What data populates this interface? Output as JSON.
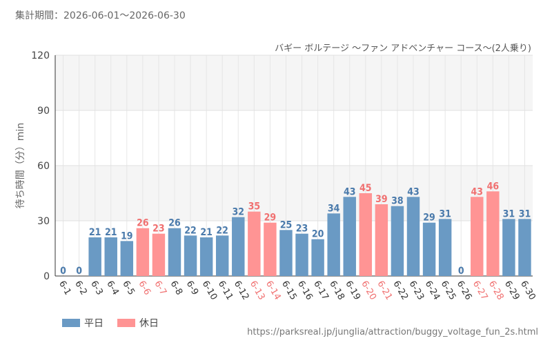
{
  "header": {
    "period": "集計期間：2026-06-01～2026-06-30"
  },
  "chart_data": {
    "type": "bar",
    "title": "バギー ボルテージ ～ファン アドベンチャー コース～(2人乗り)",
    "ylabel": "待ち時間（分）min",
    "xlabel": "",
    "ylim": [
      0,
      120
    ],
    "yticks": [
      0,
      30,
      60,
      90,
      120
    ],
    "grid": true,
    "legend_position": "bottom-left",
    "categories": [
      "6-1",
      "6-2",
      "6-3",
      "6-4",
      "6-5",
      "6-6",
      "6-7",
      "6-8",
      "6-9",
      "6-10",
      "6-11",
      "6-12",
      "6-13",
      "6-14",
      "6-15",
      "6-16",
      "6-17",
      "6-18",
      "6-19",
      "6-20",
      "6-21",
      "6-22",
      "6-23",
      "6-24",
      "6-25",
      "6-26",
      "6-27",
      "6-28",
      "6-29",
      "6-30"
    ],
    "values": [
      0,
      0,
      21,
      21,
      19,
      26,
      23,
      26,
      22,
      21,
      22,
      32,
      35,
      29,
      25,
      23,
      20,
      34,
      43,
      45,
      39,
      38,
      43,
      29,
      31,
      0,
      43,
      46,
      31,
      31
    ],
    "day_type": [
      "weekday",
      "weekday",
      "weekday",
      "weekday",
      "weekday",
      "holiday",
      "holiday",
      "weekday",
      "weekday",
      "weekday",
      "weekday",
      "weekday",
      "holiday",
      "holiday",
      "weekday",
      "weekday",
      "weekday",
      "weekday",
      "weekday",
      "holiday",
      "holiday",
      "weekday",
      "weekday",
      "weekday",
      "weekday",
      "weekday",
      "holiday",
      "holiday",
      "weekday",
      "weekday"
    ],
    "series": [
      {
        "key": "weekday",
        "name": "平日",
        "color": "#6a9ac4",
        "label_color": "#4a7aab"
      },
      {
        "key": "holiday",
        "name": "休日",
        "color": "#ff9494",
        "label_color": "#f07070"
      }
    ]
  },
  "legend": {
    "weekday_label": "平日",
    "holiday_label": "休日"
  },
  "footer": {
    "source_url": "https://parksreal.jp/junglia/attraction/buggy_voltage_fun_2s.html"
  }
}
